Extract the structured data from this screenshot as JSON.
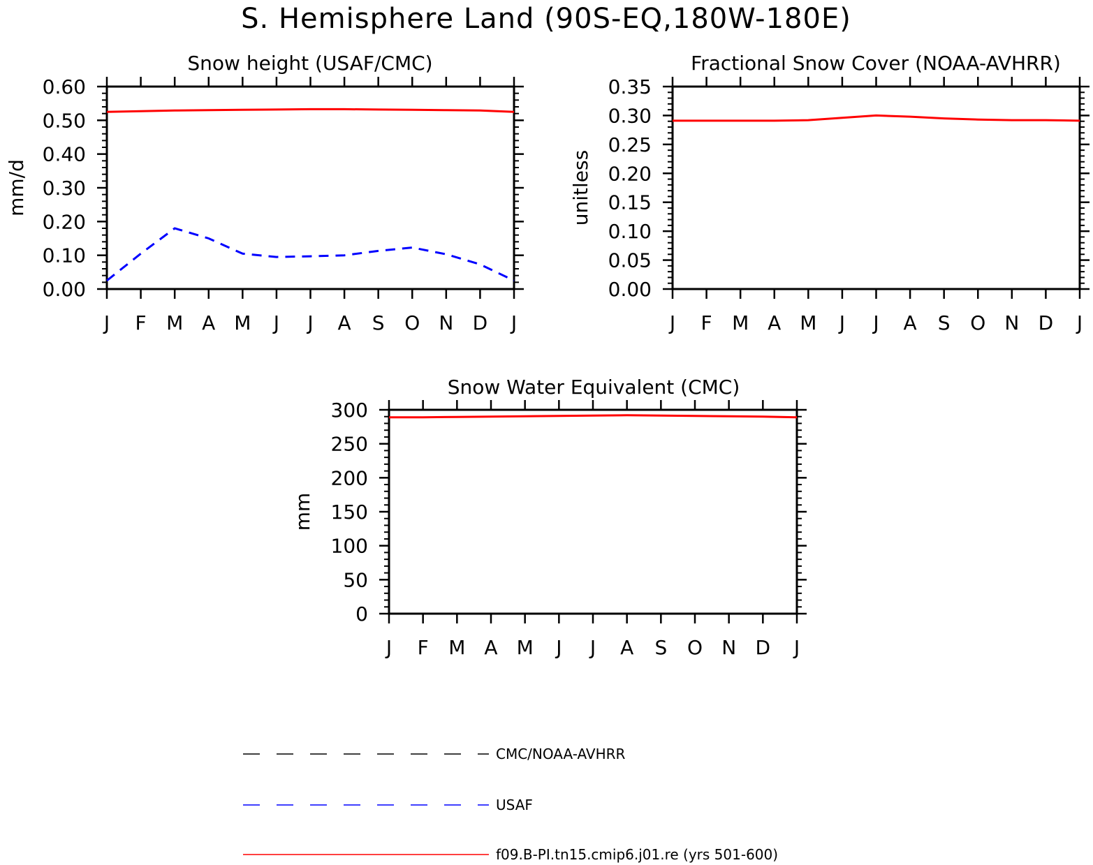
{
  "figure": {
    "title": "S. Hemisphere Land (90S-EQ,180W-180E)"
  },
  "legend": {
    "items": [
      {
        "label": "CMC/NOAA-AVHRR",
        "color": "#000000",
        "style": "dashed"
      },
      {
        "label": "USAF",
        "color": "#0000ff",
        "style": "dashed"
      },
      {
        "label": "f09.B-PI.tn15.cmip6.j01.re (yrs 501-600)",
        "color": "#ff0000",
        "style": "solid"
      }
    ]
  },
  "chart_data": [
    {
      "type": "line",
      "title": "Snow height (USAF/CMC)",
      "ylabel": "mm/d",
      "ylim": [
        0,
        0.6
      ],
      "yticks": [
        "0.00",
        "0.10",
        "0.20",
        "0.30",
        "0.40",
        "0.50",
        "0.60"
      ],
      "categories": [
        "J",
        "F",
        "M",
        "A",
        "M",
        "J",
        "J",
        "A",
        "S",
        "O",
        "N",
        "D",
        "J"
      ],
      "series": [
        {
          "name": "CMC/NOAA-AVHRR",
          "color": "#000000",
          "style": "dashed",
          "values": [
            0.0,
            0.0,
            0.0,
            0.0,
            0.0,
            0.0,
            0.0,
            0.0,
            0.0,
            0.0,
            0.0,
            0.0,
            0.0
          ]
        },
        {
          "name": "USAF",
          "color": "#0000ff",
          "style": "dashed",
          "values": [
            0.025,
            0.105,
            0.18,
            0.15,
            0.105,
            0.095,
            0.097,
            0.1,
            0.113,
            0.123,
            0.103,
            0.073,
            0.025
          ]
        },
        {
          "name": "f09.B-PI.tn15.cmip6.j01.re (yrs 501-600)",
          "color": "#ff0000",
          "style": "solid",
          "values": [
            0.525,
            0.527,
            0.529,
            0.53,
            0.531,
            0.532,
            0.533,
            0.533,
            0.532,
            0.531,
            0.53,
            0.529,
            0.525
          ]
        }
      ]
    },
    {
      "type": "line",
      "title": "Fractional Snow Cover (NOAA-AVHRR)",
      "ylabel": "unitless",
      "ylim": [
        0,
        0.35
      ],
      "yticks": [
        "0.00",
        "0.05",
        "0.10",
        "0.15",
        "0.20",
        "0.25",
        "0.30",
        "0.35"
      ],
      "categories": [
        "J",
        "F",
        "M",
        "A",
        "M",
        "J",
        "J",
        "A",
        "S",
        "O",
        "N",
        "D",
        "J"
      ],
      "series": [
        {
          "name": "CMC/NOAA-AVHRR",
          "color": "#000000",
          "style": "dashed",
          "values": [
            0.0,
            0.0,
            0.0,
            0.0,
            0.0,
            0.0,
            0.0,
            0.0,
            0.0,
            0.0,
            0.0,
            0.0,
            0.0
          ]
        },
        {
          "name": "f09.B-PI.tn15.cmip6.j01.re (yrs 501-600)",
          "color": "#ff0000",
          "style": "solid",
          "values": [
            0.291,
            0.291,
            0.291,
            0.291,
            0.292,
            0.296,
            0.3,
            0.298,
            0.295,
            0.293,
            0.292,
            0.292,
            0.291
          ]
        }
      ]
    },
    {
      "type": "line",
      "title": "Snow Water Equivalent (CMC)",
      "ylabel": "mm",
      "ylim": [
        0,
        300
      ],
      "yticks": [
        "0",
        "50",
        "100",
        "150",
        "200",
        "250",
        "300"
      ],
      "categories": [
        "J",
        "F",
        "M",
        "A",
        "M",
        "J",
        "J",
        "A",
        "S",
        "O",
        "N",
        "D",
        "J"
      ],
      "series": [
        {
          "name": "CMC/NOAA-AVHRR",
          "color": "#000000",
          "style": "dashed",
          "values": [
            0,
            0,
            0,
            0,
            0,
            0,
            0,
            0,
            0,
            0,
            0,
            0,
            0
          ]
        },
        {
          "name": "f09.B-PI.tn15.cmip6.j01.re (yrs 501-600)",
          "color": "#ff0000",
          "style": "solid",
          "values": [
            289,
            289,
            289.5,
            290,
            290.5,
            291,
            291.5,
            292,
            291.5,
            291,
            290.5,
            290,
            289
          ]
        }
      ]
    }
  ]
}
